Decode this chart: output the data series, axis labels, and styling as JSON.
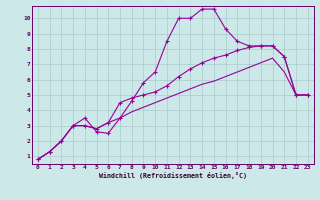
{
  "xlabel": "Windchill (Refroidissement éolien,°C)",
  "bg_color": "#cce8e8",
  "grid_color": "#aacccc",
  "line_color": "#990099",
  "xlim": [
    -0.5,
    23.5
  ],
  "ylim": [
    0.5,
    10.8
  ],
  "xticks": [
    0,
    1,
    2,
    3,
    4,
    5,
    6,
    7,
    8,
    9,
    10,
    11,
    12,
    13,
    14,
    15,
    16,
    17,
    18,
    19,
    20,
    21,
    22,
    23
  ],
  "yticks": [
    1,
    2,
    3,
    4,
    5,
    6,
    7,
    8,
    9,
    10
  ],
  "curve1_x": [
    0,
    1,
    2,
    3,
    4,
    5,
    6,
    7,
    8,
    9,
    10,
    11,
    12,
    13,
    14,
    15,
    16,
    17,
    18,
    19,
    20,
    21,
    22,
    23
  ],
  "curve1_y": [
    0.8,
    1.3,
    2.0,
    3.0,
    3.5,
    2.6,
    2.5,
    3.5,
    4.6,
    5.8,
    6.5,
    8.5,
    10.0,
    10.0,
    10.6,
    10.6,
    9.3,
    8.5,
    8.2,
    8.2,
    8.2,
    7.5,
    5.0,
    5.0
  ],
  "curve2_x": [
    0,
    1,
    2,
    3,
    4,
    5,
    6,
    7,
    8,
    9,
    10,
    11,
    12,
    13,
    14,
    15,
    16,
    17,
    18,
    19,
    20,
    21,
    22,
    23
  ],
  "curve2_y": [
    0.8,
    1.3,
    2.0,
    3.0,
    3.0,
    2.8,
    3.2,
    4.5,
    4.8,
    5.0,
    5.2,
    5.6,
    6.2,
    6.7,
    7.1,
    7.4,
    7.6,
    7.9,
    8.1,
    8.2,
    8.2,
    7.5,
    5.0,
    5.0
  ],
  "curve3_x": [
    0,
    1,
    2,
    3,
    4,
    5,
    6,
    7,
    8,
    9,
    10,
    11,
    12,
    13,
    14,
    15,
    16,
    17,
    18,
    19,
    20,
    21,
    22,
    23
  ],
  "curve3_y": [
    0.8,
    1.3,
    2.0,
    3.0,
    3.0,
    2.8,
    3.2,
    3.5,
    3.9,
    4.2,
    4.5,
    4.8,
    5.1,
    5.4,
    5.7,
    5.9,
    6.2,
    6.5,
    6.8,
    7.1,
    7.4,
    6.5,
    5.0,
    5.0
  ]
}
